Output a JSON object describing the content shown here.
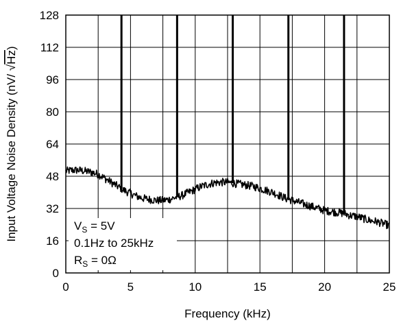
{
  "chart_data": {
    "type": "line",
    "xlabel": "Frequency (kHz)",
    "ylabel_prefix": "Input Voltage Noise Density (nV/ ",
    "ylabel_radical": "√",
    "ylabel_hz": "Hz",
    "ylabel_suffix": ")",
    "xlim": [
      0,
      25
    ],
    "ylim": [
      0,
      128
    ],
    "x_ticks": [
      0,
      5,
      10,
      15,
      20,
      25
    ],
    "y_ticks": [
      0,
      16,
      32,
      48,
      64,
      80,
      96,
      112,
      128
    ],
    "grid": true,
    "annotations": {
      "vs_main": "V",
      "vs_sub": "S",
      "vs_rest": " = 5V",
      "band": "0.1Hz to 25kHz",
      "rs_main": "R",
      "rs_sub": "S",
      "rs_rest": " = 0Ω"
    },
    "noise_curve": {
      "x": [
        0,
        0.5,
        1,
        1.5,
        2,
        2.5,
        3,
        3.5,
        4,
        4.5,
        5,
        5.5,
        6,
        6.5,
        7,
        7.5,
        8,
        8.5,
        9,
        9.5,
        10,
        10.5,
        11,
        11.5,
        12,
        12.5,
        13,
        13.5,
        14,
        14.5,
        15,
        15.5,
        16,
        16.5,
        17,
        17.5,
        18,
        18.5,
        19,
        19.5,
        20,
        20.5,
        21,
        21.5,
        22,
        22.5,
        23,
        23.5,
        24,
        24.5,
        25
      ],
      "y": [
        50.5,
        51,
        51,
        50.5,
        50,
        49,
        47,
        45,
        43,
        41,
        39.5,
        38,
        37,
        36.5,
        36,
        36,
        36.5,
        37.5,
        38.5,
        40,
        41.5,
        43,
        44,
        44.8,
        45,
        45,
        44.5,
        44,
        43.5,
        43,
        42,
        41,
        40,
        38.5,
        37,
        36,
        35,
        34,
        33,
        32,
        31,
        30.5,
        30,
        29.5,
        28.5,
        28,
        27,
        26,
        25.5,
        24.5,
        23.5
      ]
    },
    "spikes": [
      {
        "x": 4.3,
        "y": 128
      },
      {
        "x": 8.6,
        "y": 128
      },
      {
        "x": 12.9,
        "y": 128
      },
      {
        "x": 17.2,
        "y": 128
      },
      {
        "x": 21.5,
        "y": 128
      }
    ]
  }
}
